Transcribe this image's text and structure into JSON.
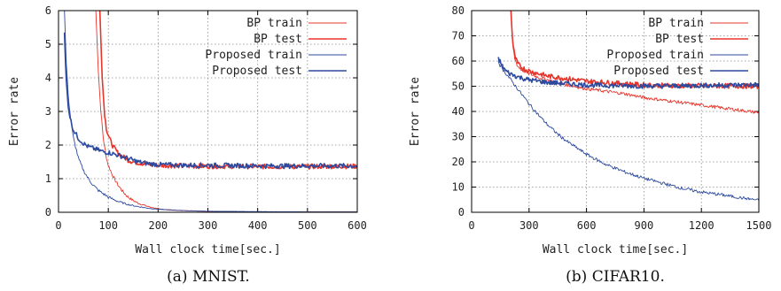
{
  "chart_data": [
    {
      "type": "line",
      "xlabel": "Wall clock time[sec.]",
      "ylabel": "Error rate",
      "xlim": [
        0,
        600
      ],
      "ylim": [
        0,
        6
      ],
      "xticks": [
        0,
        100,
        200,
        300,
        400,
        500,
        600
      ],
      "yticks": [
        0,
        1,
        2,
        3,
        4,
        5,
        6
      ],
      "grid": true,
      "legend_position": "top-right",
      "caption": "(a) MNIST.",
      "series": [
        {
          "name": "BP train",
          "color": "#e8352b",
          "width": 0.9,
          "x": [
            75,
            80,
            85,
            90,
            95,
            100,
            110,
            120,
            130,
            140,
            150,
            160,
            180,
            200,
            220,
            250,
            300,
            350,
            400,
            500,
            600
          ],
          "y": [
            6.0,
            4.2,
            3.0,
            2.2,
            1.7,
            1.4,
            1.05,
            0.8,
            0.6,
            0.45,
            0.35,
            0.27,
            0.17,
            0.1,
            0.07,
            0.05,
            0.03,
            0.02,
            0.01,
            0.01,
            0.01
          ]
        },
        {
          "name": "BP test",
          "color": "#e8352b",
          "width": 1.6,
          "x": [
            83,
            88,
            92,
            96,
            100,
            105,
            110,
            120,
            130,
            140,
            150,
            170,
            200,
            250,
            300,
            350,
            400,
            450,
            500,
            550,
            600
          ],
          "y": [
            6.0,
            4.0,
            3.0,
            2.5,
            2.3,
            2.1,
            1.95,
            1.75,
            1.65,
            1.55,
            1.5,
            1.45,
            1.4,
            1.38,
            1.37,
            1.37,
            1.36,
            1.36,
            1.36,
            1.37,
            1.37
          ]
        },
        {
          "name": "Proposed train",
          "color": "#2c4a9e",
          "width": 0.9,
          "x": [
            12,
            15,
            20,
            25,
            30,
            40,
            50,
            60,
            70,
            80,
            90,
            100,
            120,
            140,
            160,
            180,
            200,
            250,
            300,
            400,
            500,
            600
          ],
          "y": [
            6.0,
            4.6,
            3.4,
            2.7,
            2.2,
            1.6,
            1.25,
            1.0,
            0.8,
            0.65,
            0.55,
            0.45,
            0.32,
            0.23,
            0.17,
            0.12,
            0.09,
            0.05,
            0.03,
            0.02,
            0.01,
            0.01
          ]
        },
        {
          "name": "Proposed test",
          "color": "#2c4a9e",
          "width": 1.6,
          "x": [
            12,
            15,
            20,
            25,
            30,
            40,
            50,
            60,
            70,
            80,
            90,
            100,
            120,
            140,
            160,
            180,
            200,
            250,
            300,
            350,
            400,
            450,
            500,
            550,
            600
          ],
          "y": [
            5.3,
            4.0,
            3.1,
            2.7,
            2.45,
            2.2,
            2.05,
            1.95,
            1.9,
            1.85,
            1.8,
            1.78,
            1.7,
            1.6,
            1.5,
            1.45,
            1.42,
            1.4,
            1.4,
            1.39,
            1.38,
            1.38,
            1.38,
            1.38,
            1.38
          ]
        }
      ]
    },
    {
      "type": "line",
      "xlabel": "Wall clock time[sec.]",
      "ylabel": "Error rate",
      "xlim": [
        0,
        1500
      ],
      "ylim": [
        0,
        80
      ],
      "xticks": [
        0,
        300,
        600,
        900,
        1200,
        1500
      ],
      "yticks": [
        0,
        10,
        20,
        30,
        40,
        50,
        60,
        70,
        80
      ],
      "grid": true,
      "legend_position": "top-right",
      "caption": "(b) CIFAR10.",
      "series": [
        {
          "name": "BP train",
          "color": "#e8352b",
          "width": 0.9,
          "x": [
            205,
            215,
            225,
            240,
            260,
            300,
            350,
            400,
            450,
            500,
            600,
            700,
            800,
            900,
            1000,
            1100,
            1200,
            1300,
            1400,
            1500
          ],
          "y": [
            80,
            66,
            61,
            58,
            56.5,
            55,
            53.5,
            52.5,
            51.5,
            50.5,
            49,
            48,
            47,
            45.5,
            44.5,
            43.5,
            42.5,
            41.5,
            40.5,
            39.5
          ]
        },
        {
          "name": "BP test",
          "color": "#e8352b",
          "width": 1.6,
          "x": [
            205,
            215,
            225,
            240,
            260,
            300,
            350,
            400,
            500,
            600,
            700,
            800,
            900,
            1000,
            1100,
            1200,
            1300,
            1400,
            1500
          ],
          "y": [
            80,
            67,
            62,
            59,
            57.5,
            56,
            55,
            54,
            53,
            52,
            51.5,
            51,
            50.5,
            50.3,
            50.2,
            50.2,
            50.1,
            50.1,
            50
          ]
        },
        {
          "name": "Proposed train",
          "color": "#2c4a9e",
          "width": 0.9,
          "x": [
            140,
            150,
            170,
            200,
            250,
            300,
            350,
            400,
            450,
            500,
            600,
            700,
            800,
            900,
            1000,
            1100,
            1200,
            1300,
            1400,
            1500
          ],
          "y": [
            60,
            58,
            56,
            53,
            48,
            43,
            38.5,
            34.5,
            31,
            28,
            23,
            19,
            16,
            13.5,
            11.5,
            9.5,
            8,
            7,
            5.8,
            4.8
          ]
        },
        {
          "name": "Proposed test",
          "color": "#2c4a9e",
          "width": 1.6,
          "x": [
            140,
            160,
            180,
            200,
            250,
            300,
            350,
            400,
            500,
            600,
            700,
            800,
            900,
            1000,
            1100,
            1200,
            1300,
            1400,
            1500
          ],
          "y": [
            61,
            58,
            56,
            55,
            53.5,
            52.5,
            52,
            51.5,
            51,
            50.5,
            50.3,
            50.2,
            50.1,
            50.1,
            50.2,
            50.3,
            50.4,
            50.5,
            50.6
          ]
        }
      ]
    }
  ]
}
